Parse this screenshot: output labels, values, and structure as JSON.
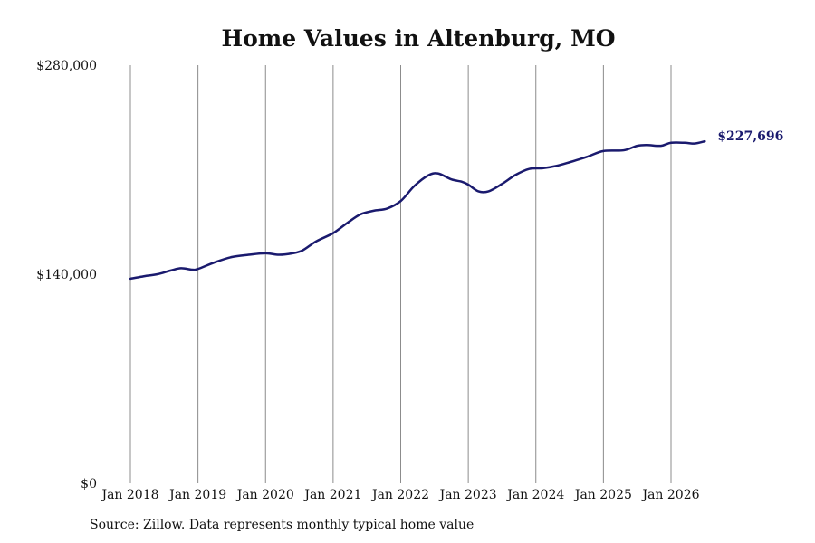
{
  "chart_data": {
    "type": "line",
    "title": "Home Values in Altenburg, MO",
    "xlabel": "",
    "ylabel": "",
    "ylim": [
      0,
      280000
    ],
    "yticks": [
      {
        "value": 0,
        "label": "$0"
      },
      {
        "value": 140000,
        "label": "$140,000"
      },
      {
        "value": 280000,
        "label": "$280,000"
      }
    ],
    "xticks": [
      {
        "value": 2018,
        "label": "Jan 2018"
      },
      {
        "value": 2019,
        "label": "Jan 2019"
      },
      {
        "value": 2020,
        "label": "Jan 2020"
      },
      {
        "value": 2021,
        "label": "Jan 2021"
      },
      {
        "value": 2022,
        "label": "Jan 2022"
      },
      {
        "value": 2023,
        "label": "Jan 2023"
      },
      {
        "value": 2024,
        "label": "Jan 2024"
      },
      {
        "value": 2025,
        "label": "Jan 2025"
      },
      {
        "value": 2026,
        "label": "Jan 2026"
      }
    ],
    "xlim": [
      2018,
      2026.5
    ],
    "grid": "vertical",
    "line_color": "#1a1a6e",
    "end_label": "$227,696",
    "series": [
      {
        "color": "#1a1a6e",
        "x": [
          2018.0,
          2018.25,
          2018.4,
          2018.6,
          2018.75,
          2018.92,
          2019.0,
          2019.25,
          2019.5,
          2019.75,
          2020.0,
          2020.2,
          2020.4,
          2020.55,
          2020.75,
          2021.0,
          2021.2,
          2021.4,
          2021.6,
          2021.8,
          2022.0,
          2022.2,
          2022.4,
          2022.55,
          2022.75,
          2022.9,
          2023.0,
          2023.15,
          2023.3,
          2023.5,
          2023.7,
          2023.9,
          2024.1,
          2024.3,
          2024.5,
          2024.75,
          2025.0,
          2025.3,
          2025.5,
          2025.65,
          2025.85,
          2026.0,
          2026.2,
          2026.35,
          2026.5
        ],
        "y": [
          137000,
          139000,
          140000,
          142500,
          144000,
          143000,
          143500,
          148000,
          151500,
          153000,
          154000,
          153000,
          154000,
          156000,
          162000,
          167500,
          174000,
          180000,
          182500,
          184000,
          189000,
          199000,
          206000,
          207500,
          203500,
          202000,
          200000,
          195500,
          195500,
          200500,
          206500,
          210500,
          211000,
          212500,
          215000,
          218500,
          222500,
          223000,
          226000,
          226500,
          226000,
          228000,
          228000,
          227500,
          229000
        ]
      }
    ]
  },
  "footer": {
    "source_text": "Source: Zillow. Data represents monthly typical home value"
  }
}
